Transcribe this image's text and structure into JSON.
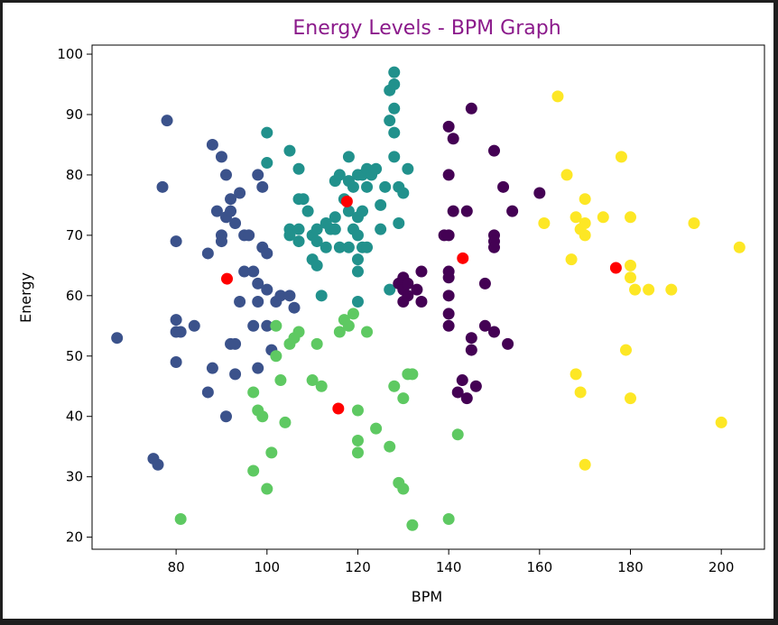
{
  "chart_data": {
    "type": "scatter",
    "title": "Energy Levels - BPM Graph",
    "xlabel": "BPM",
    "ylabel": "Energy",
    "xlim": [
      61.5,
      209.5
    ],
    "ylim": [
      18,
      101.5
    ],
    "xticks": [
      80,
      100,
      120,
      140,
      160,
      180,
      200
    ],
    "yticks": [
      20,
      30,
      40,
      50,
      60,
      70,
      80,
      90,
      100
    ],
    "grid": false,
    "title_color": "#8b1a8b",
    "series": [
      {
        "color": "#3b528b",
        "points": [
          [
            67,
            53
          ],
          [
            75,
            33
          ],
          [
            76,
            32
          ],
          [
            77,
            78
          ],
          [
            78,
            89
          ],
          [
            80,
            69
          ],
          [
            80,
            56
          ],
          [
            80,
            54
          ],
          [
            81,
            54
          ],
          [
            80,
            49
          ],
          [
            84,
            55
          ],
          [
            87,
            67
          ],
          [
            87,
            44
          ],
          [
            88,
            85
          ],
          [
            88,
            48
          ],
          [
            89,
            74
          ],
          [
            90,
            83
          ],
          [
            90,
            70
          ],
          [
            90,
            69
          ],
          [
            91,
            80
          ],
          [
            91,
            73
          ],
          [
            92,
            76
          ],
          [
            92,
            74
          ],
          [
            91,
            40
          ],
          [
            92,
            52
          ],
          [
            93,
            52
          ],
          [
            93,
            47
          ],
          [
            94,
            77
          ],
          [
            94,
            59
          ],
          [
            95,
            70
          ],
          [
            95,
            64
          ],
          [
            96,
            70
          ],
          [
            97,
            55
          ],
          [
            97,
            64
          ],
          [
            98,
            80
          ],
          [
            98,
            62
          ],
          [
            98,
            59
          ],
          [
            98,
            48
          ],
          [
            99,
            78
          ],
          [
            99,
            68
          ],
          [
            100,
            67
          ],
          [
            100,
            61
          ],
          [
            100,
            55
          ],
          [
            101,
            51
          ],
          [
            102,
            59
          ],
          [
            103,
            60
          ],
          [
            105,
            60
          ],
          [
            106,
            58
          ],
          [
            93,
            72
          ]
        ]
      },
      {
        "color": "#21918c",
        "points": [
          [
            100,
            87
          ],
          [
            100,
            82
          ],
          [
            105,
            84
          ],
          [
            105,
            71
          ],
          [
            105,
            70
          ],
          [
            107,
            81
          ],
          [
            107,
            76
          ],
          [
            107,
            71
          ],
          [
            107,
            69
          ],
          [
            108,
            76
          ],
          [
            109,
            74
          ],
          [
            110,
            70
          ],
          [
            110,
            66
          ],
          [
            111,
            65
          ],
          [
            111,
            71
          ],
          [
            111,
            69
          ],
          [
            112,
            60
          ],
          [
            113,
            72
          ],
          [
            113,
            68
          ],
          [
            114,
            71
          ],
          [
            115,
            79
          ],
          [
            115,
            73
          ],
          [
            115,
            71
          ],
          [
            116,
            80
          ],
          [
            116,
            68
          ],
          [
            117,
            76
          ],
          [
            118,
            83
          ],
          [
            118,
            79
          ],
          [
            118,
            74
          ],
          [
            118,
            68
          ],
          [
            119,
            78
          ],
          [
            119,
            71
          ],
          [
            120,
            80
          ],
          [
            120,
            73
          ],
          [
            120,
            70
          ],
          [
            120,
            66
          ],
          [
            120,
            64
          ],
          [
            120,
            59
          ],
          [
            121,
            80
          ],
          [
            121,
            74
          ],
          [
            121,
            68
          ],
          [
            122,
            81
          ],
          [
            122,
            78
          ],
          [
            122,
            68
          ],
          [
            123,
            80
          ],
          [
            124,
            81
          ],
          [
            125,
            71
          ],
          [
            125,
            75
          ],
          [
            126,
            78
          ],
          [
            127,
            89
          ],
          [
            127,
            61
          ],
          [
            127,
            94
          ],
          [
            128,
            95
          ],
          [
            128,
            97
          ],
          [
            128,
            91
          ],
          [
            128,
            87
          ],
          [
            128,
            83
          ],
          [
            129,
            78
          ],
          [
            129,
            72
          ],
          [
            130,
            77
          ],
          [
            131,
            81
          ]
        ]
      },
      {
        "color": "#5ec962",
        "points": [
          [
            81,
            23
          ],
          [
            97,
            31
          ],
          [
            97,
            44
          ],
          [
            98,
            41
          ],
          [
            99,
            40
          ],
          [
            100,
            28
          ],
          [
            101,
            34
          ],
          [
            102,
            50
          ],
          [
            102,
            55
          ],
          [
            103,
            46
          ],
          [
            104,
            39
          ],
          [
            105,
            52
          ],
          [
            106,
            53
          ],
          [
            107,
            54
          ],
          [
            110,
            46
          ],
          [
            111,
            52
          ],
          [
            112,
            45
          ],
          [
            116,
            54
          ],
          [
            117,
            56
          ],
          [
            118,
            55
          ],
          [
            119,
            57
          ],
          [
            120,
            41
          ],
          [
            120,
            36
          ],
          [
            120,
            34
          ],
          [
            122,
            54
          ],
          [
            124,
            38
          ],
          [
            127,
            35
          ],
          [
            128,
            45
          ],
          [
            129,
            29
          ],
          [
            130,
            28
          ],
          [
            130,
            43
          ],
          [
            131,
            47
          ],
          [
            132,
            47
          ],
          [
            132,
            22
          ],
          [
            140,
            23
          ],
          [
            142,
            37
          ]
        ]
      },
      {
        "color": "#440154",
        "points": [
          [
            129,
            62
          ],
          [
            130,
            61
          ],
          [
            130,
            59
          ],
          [
            130,
            63
          ],
          [
            131,
            62
          ],
          [
            131,
            60
          ],
          [
            133,
            61
          ],
          [
            134,
            64
          ],
          [
            134,
            59
          ],
          [
            139,
            70
          ],
          [
            140,
            70
          ],
          [
            140,
            64
          ],
          [
            140,
            63
          ],
          [
            140,
            60
          ],
          [
            140,
            57
          ],
          [
            140,
            55
          ],
          [
            140,
            80
          ],
          [
            140,
            88
          ],
          [
            141,
            86
          ],
          [
            141,
            74
          ],
          [
            142,
            44
          ],
          [
            143,
            46
          ],
          [
            144,
            74
          ],
          [
            144,
            43
          ],
          [
            145,
            91
          ],
          [
            145,
            53
          ],
          [
            145,
            51
          ],
          [
            146,
            45
          ],
          [
            148,
            62
          ],
          [
            148,
            55
          ],
          [
            150,
            84
          ],
          [
            150,
            70
          ],
          [
            150,
            69
          ],
          [
            150,
            68
          ],
          [
            150,
            54
          ],
          [
            152,
            78
          ],
          [
            153,
            52
          ],
          [
            154,
            74
          ],
          [
            160,
            77
          ]
        ]
      },
      {
        "color": "#fde725",
        "points": [
          [
            164,
            93
          ],
          [
            166,
            80
          ],
          [
            161,
            72
          ],
          [
            167,
            66
          ],
          [
            168,
            73
          ],
          [
            168,
            47
          ],
          [
            169,
            44
          ],
          [
            169,
            71
          ],
          [
            170,
            76
          ],
          [
            170,
            72
          ],
          [
            170,
            70
          ],
          [
            170,
            32
          ],
          [
            174,
            73
          ],
          [
            178,
            83
          ],
          [
            179,
            51
          ],
          [
            180,
            73
          ],
          [
            180,
            65
          ],
          [
            180,
            63
          ],
          [
            180,
            43
          ],
          [
            181,
            61
          ],
          [
            184,
            61
          ],
          [
            189,
            61
          ],
          [
            194,
            72
          ],
          [
            200,
            39
          ],
          [
            204,
            68
          ]
        ]
      }
    ],
    "centroids": {
      "color": "#ff0000",
      "points": [
        [
          91.2,
          62.8
        ],
        [
          117.6,
          75.6
        ],
        [
          115.7,
          41.3
        ],
        [
          143.1,
          66.2
        ],
        [
          176.8,
          64.6
        ]
      ]
    }
  }
}
